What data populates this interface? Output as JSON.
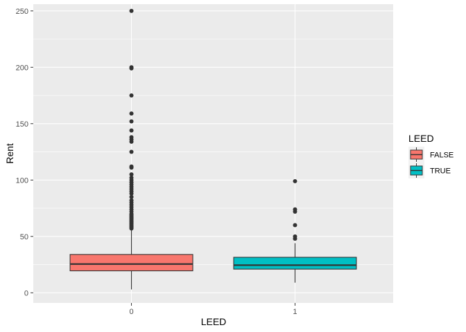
{
  "chart_data": {
    "type": "boxplot",
    "xlabel": "LEED",
    "ylabel": "Rent",
    "ylim": [
      -9,
      256
    ],
    "yticks": [
      0,
      50,
      100,
      150,
      200,
      250
    ],
    "categories": [
      "0",
      "1"
    ],
    "grid": true,
    "legend_position": "right",
    "legend": {
      "title": "LEED",
      "entries": [
        {
          "label": "FALSE",
          "color": "#F8766D"
        },
        {
          "label": "TRUE",
          "color": "#00BFC4"
        }
      ]
    },
    "series": [
      {
        "name": "FALSE",
        "category": "0",
        "color": "#F8766D",
        "whisker_low": 3,
        "q1": 19.5,
        "median": 25.5,
        "q3": 34,
        "whisker_high": 56,
        "outliers": [
          57,
          58,
          59,
          60,
          61,
          62,
          63,
          64,
          65,
          66,
          67,
          68,
          69,
          70,
          72,
          74,
          76,
          78,
          80,
          82,
          85,
          88,
          90,
          92,
          94,
          96,
          98,
          100,
          102,
          105,
          111,
          112,
          125,
          134,
          136,
          138,
          144,
          152,
          159,
          175,
          199,
          200,
          250
        ]
      },
      {
        "name": "TRUE",
        "category": "1",
        "color": "#00BFC4",
        "whisker_low": 9,
        "q1": 21,
        "median": 24.5,
        "q3": 31.5,
        "whisker_high": 44,
        "outliers": [
          48,
          50,
          60,
          72,
          74,
          99
        ]
      }
    ]
  }
}
